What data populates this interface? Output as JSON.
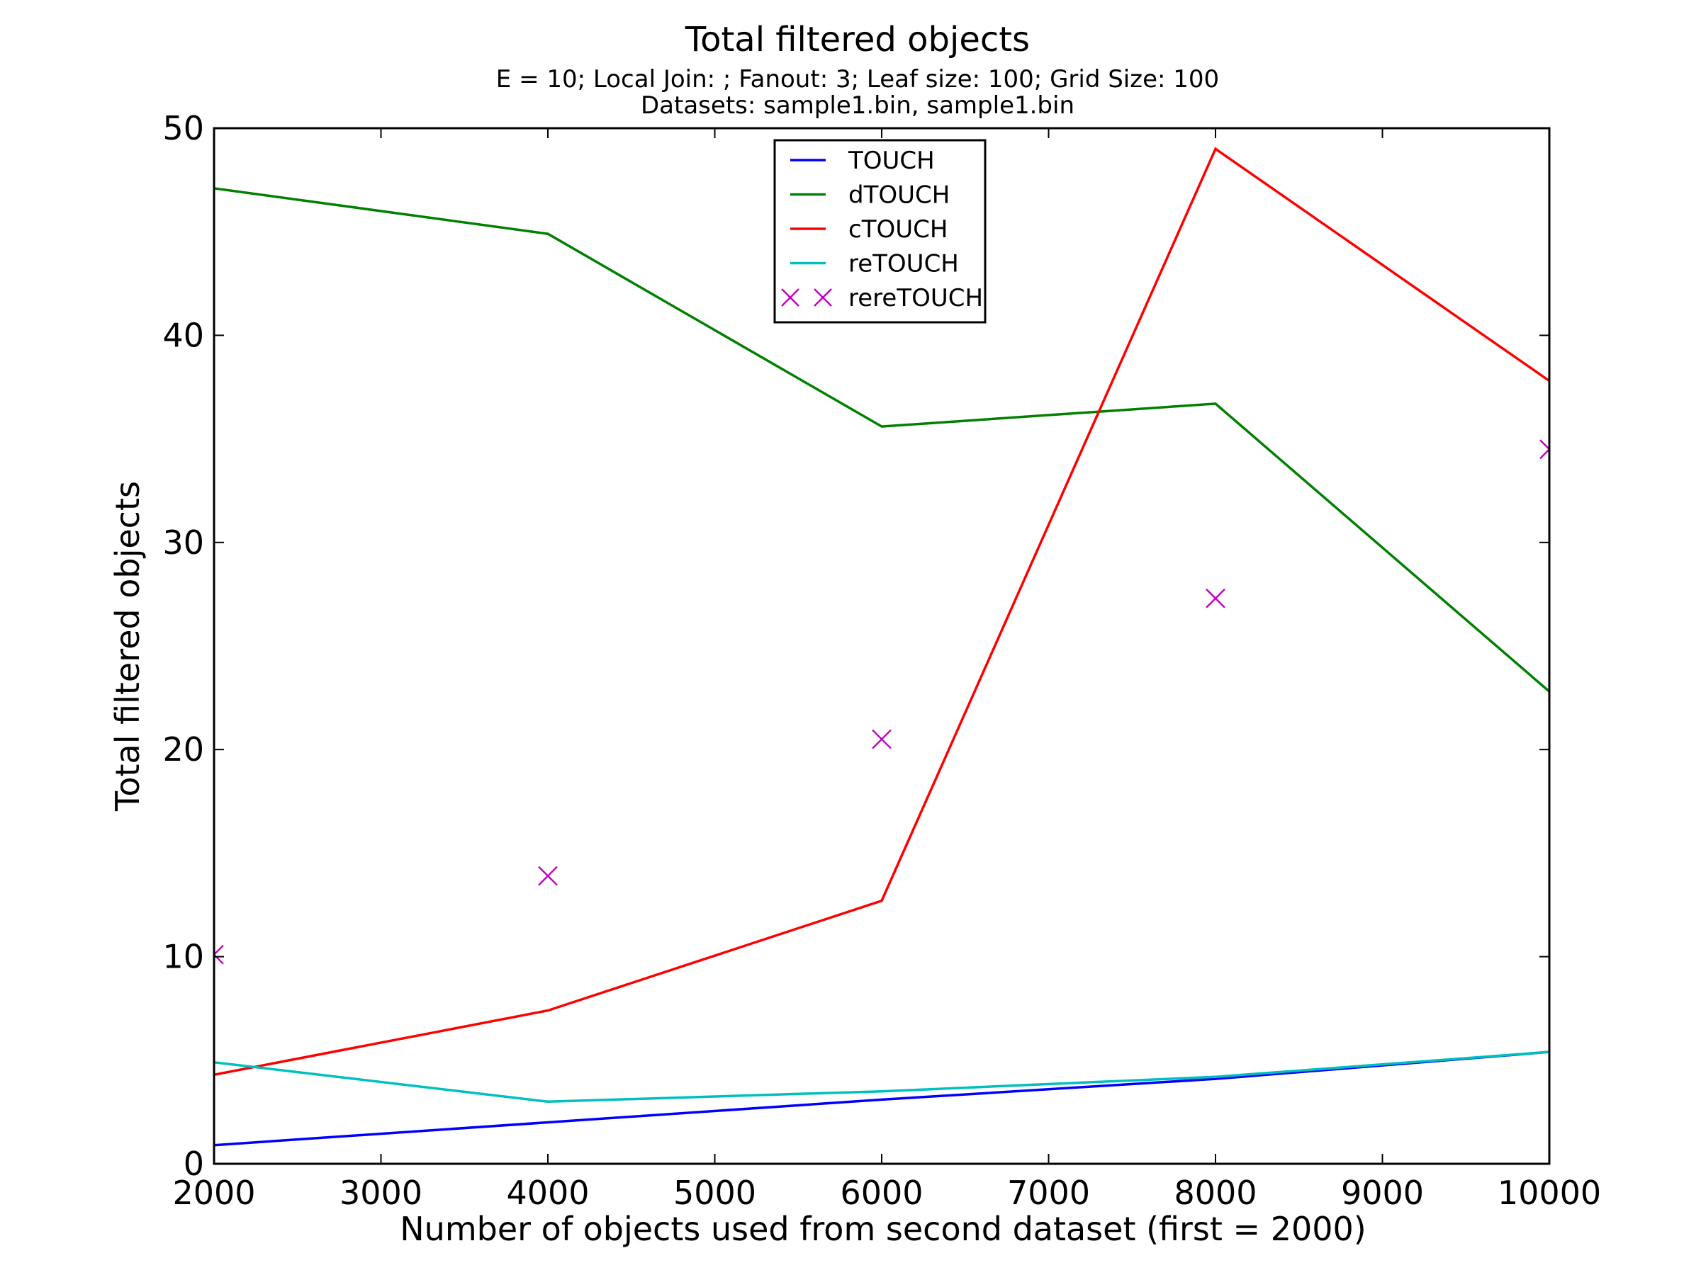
{
  "chart_data": {
    "type": "line",
    "title": "Total filtered objects",
    "subtitle_lines": [
      "E = 10; Local Join: ; Fanout: 3; Leaf size: 100; Grid Size: 100",
      "Datasets: sample1.bin, sample1.bin"
    ],
    "xlabel": "Number of objects used from second dataset (first = 2000)",
    "ylabel": "Total filtered objects",
    "xlim": [
      2000,
      10000
    ],
    "ylim": [
      0,
      50
    ],
    "x_ticks": [
      2000,
      3000,
      4000,
      5000,
      6000,
      7000,
      8000,
      9000,
      10000
    ],
    "y_ticks": [
      0,
      10,
      20,
      30,
      40,
      50
    ],
    "grid": false,
    "legend_position": "top-center",
    "series": [
      {
        "name": "TOUCH",
        "style": "line",
        "color": "#0000ff",
        "x": [
          2000,
          4000,
          6000,
          8000,
          10000
        ],
        "y": [
          0.9,
          2.0,
          3.1,
          4.1,
          5.4
        ]
      },
      {
        "name": "dTOUCH",
        "style": "line",
        "color": "#008000",
        "x": [
          2000,
          4000,
          6000,
          8000,
          10000
        ],
        "y": [
          47.1,
          44.9,
          35.6,
          36.7,
          22.8
        ]
      },
      {
        "name": "cTOUCH",
        "style": "line",
        "color": "#ff0000",
        "x": [
          2000,
          4000,
          6000,
          8000,
          10000
        ],
        "y": [
          4.3,
          7.4,
          12.7,
          49.0,
          37.8
        ]
      },
      {
        "name": "reTOUCH",
        "style": "line",
        "color": "#00bfbf",
        "x": [
          2000,
          4000,
          6000,
          8000,
          10000
        ],
        "y": [
          4.9,
          3.0,
          3.5,
          4.2,
          5.4
        ]
      },
      {
        "name": "rereTOUCH",
        "style": "marker",
        "color": "#bf00bf",
        "x": [
          2000,
          4000,
          6000,
          8000,
          10000
        ],
        "y": [
          10.1,
          13.9,
          20.5,
          27.3,
          34.5
        ]
      }
    ]
  }
}
